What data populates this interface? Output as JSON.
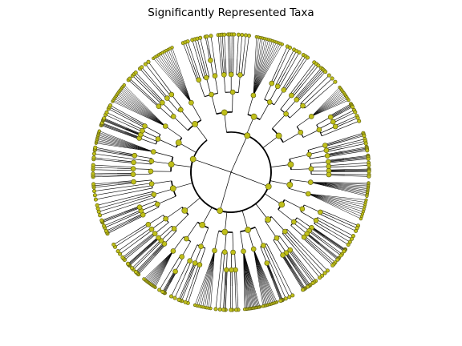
{
  "figure": {
    "title": "Significantly Represented Taxa"
  },
  "style": {
    "node_fill": "#bfbf1a",
    "node_stroke": "#55550a",
    "edge_color": "#000000"
  },
  "tree": {
    "type": "circular-cladogram",
    "root_children": 4,
    "node_marker": "circle"
  }
}
